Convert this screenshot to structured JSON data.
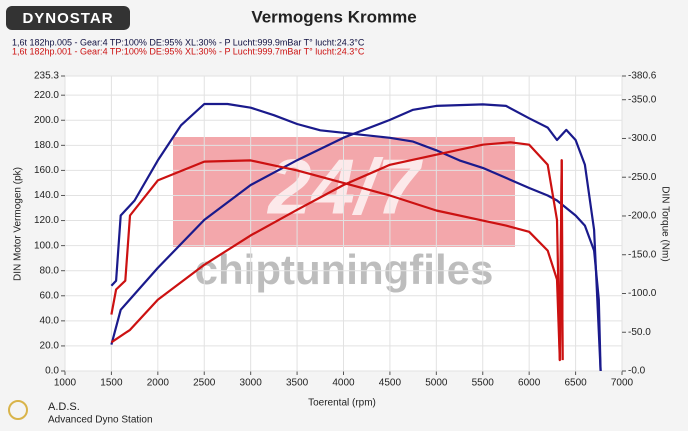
{
  "chart_data": {
    "type": "line",
    "title": "Vermogens Kromme",
    "logo": "DYNOSTAR",
    "header_lines": [
      {
        "text": "1,6t 182hp.005 - Gear:4 TP:100% DE:95% XL:30%   - P Lucht:999.9mBar T° lucht:24.3°C",
        "color": "#101040"
      },
      {
        "text": "1,6t 182hp.001 - Gear:4 TP:100% DE:95% XL:30%   - P Lucht:999.7mBar T° lucht:24.3°C",
        "color": "#cc1111"
      }
    ],
    "xlabel": "Toerental (rpm)",
    "ylabel": "DIN Motor Vermogen (pk)",
    "y2label": "DIN Torque (Nm)",
    "watermark": [
      "24/7",
      "chiptuningfiles"
    ],
    "footer": [
      "A.D.S.",
      "Advanced Dyno Station"
    ],
    "xlim": [
      1000,
      7000
    ],
    "xticks": [
      1000,
      1500,
      2000,
      2500,
      3000,
      3500,
      4000,
      4500,
      5000,
      5500,
      6000,
      6500,
      7000
    ],
    "ylim": [
      0,
      235.3
    ],
    "yticks": [
      {
        "value": 0,
        "label": "0.0"
      },
      {
        "value": 20,
        "label": "20.0"
      },
      {
        "value": 40,
        "label": "40.0"
      },
      {
        "value": 60,
        "label": "60.0"
      },
      {
        "value": 80,
        "label": "80.0"
      },
      {
        "value": 100,
        "label": "100.0"
      },
      {
        "value": 120,
        "label": "120.0"
      },
      {
        "value": 140,
        "label": "140.0"
      },
      {
        "value": 160,
        "label": "160.0"
      },
      {
        "value": 180,
        "label": "180.0"
      },
      {
        "value": 200,
        "label": "200.0"
      },
      {
        "value": 220,
        "label": "220.0"
      },
      235.3
    ],
    "y2lim": [
      0,
      380.6
    ],
    "y2ticks": [
      {
        "value": 0,
        "label": "-0.0"
      },
      {
        "value": 50,
        "label": "-50.0"
      },
      {
        "value": 100,
        "label": "-100.0"
      },
      {
        "value": 150,
        "label": "-150.0"
      },
      {
        "value": 200,
        "label": "-200.0"
      },
      {
        "value": 250,
        "label": "-250.0"
      },
      {
        "value": 300,
        "label": "-300.0"
      },
      {
        "value": 350,
        "label": "-350.0"
      },
      {
        "value": 380.6,
        "label": "-380.6"
      }
    ],
    "grid": true,
    "series": [
      {
        "color": "#1a1a8c",
        "x": [
          1500,
          1550,
          1600,
          1750,
          2000,
          2250,
          2500,
          2750,
          3000,
          3250,
          3500,
          3750,
          4000,
          4250,
          4500,
          4750,
          5000,
          5250,
          5500,
          5750,
          6000,
          6200,
          6300,
          6500,
          6600,
          6700,
          6750,
          6770
        ],
        "values": [
          68,
          72,
          124,
          136,
          168,
          196,
          213,
          213,
          210,
          204,
          197,
          192,
          190,
          188,
          186,
          183,
          176,
          168,
          162,
          154,
          146,
          140,
          136,
          124,
          116,
          96,
          57,
          0
        ]
      },
      {
        "color": "#1a1a8c",
        "axis": "y2",
        "x": [
          1500,
          1600,
          2000,
          2500,
          3000,
          3500,
          4000,
          4500,
          4750,
          5000,
          5500,
          5750,
          6000,
          6200,
          6300,
          6400,
          6500,
          6600,
          6700,
          6770
        ],
        "values": [
          34,
          79,
          133,
          195,
          240,
          272,
          301,
          324,
          337,
          342,
          344,
          342,
          326,
          314,
          298,
          311,
          298,
          266,
          182,
          0
        ]
      },
      {
        "color": "#cc1111",
        "x": [
          1500,
          1550,
          1650,
          1700,
          2000,
          2500,
          3000,
          3500,
          4000,
          4500,
          5000,
          5500,
          5750,
          6000,
          6200,
          6300,
          6330,
          6350,
          6360
        ],
        "values": [
          45,
          65,
          72,
          124,
          152,
          167,
          168,
          160,
          150,
          140,
          128,
          120,
          116,
          111,
          96,
          73,
          9,
          168,
          9
        ]
      },
      {
        "color": "#cc1111",
        "axis": "y2",
        "x": [
          1500,
          1700,
          2000,
          2500,
          3000,
          3500,
          4000,
          4500,
          5000,
          5500,
          5800,
          6000,
          6200,
          6300,
          6330,
          6350,
          6360
        ],
        "values": [
          37,
          53,
          92,
          137,
          175,
          208,
          240,
          266,
          279,
          292,
          295,
          292,
          266,
          195,
          14,
          272,
          14
        ]
      }
    ]
  }
}
